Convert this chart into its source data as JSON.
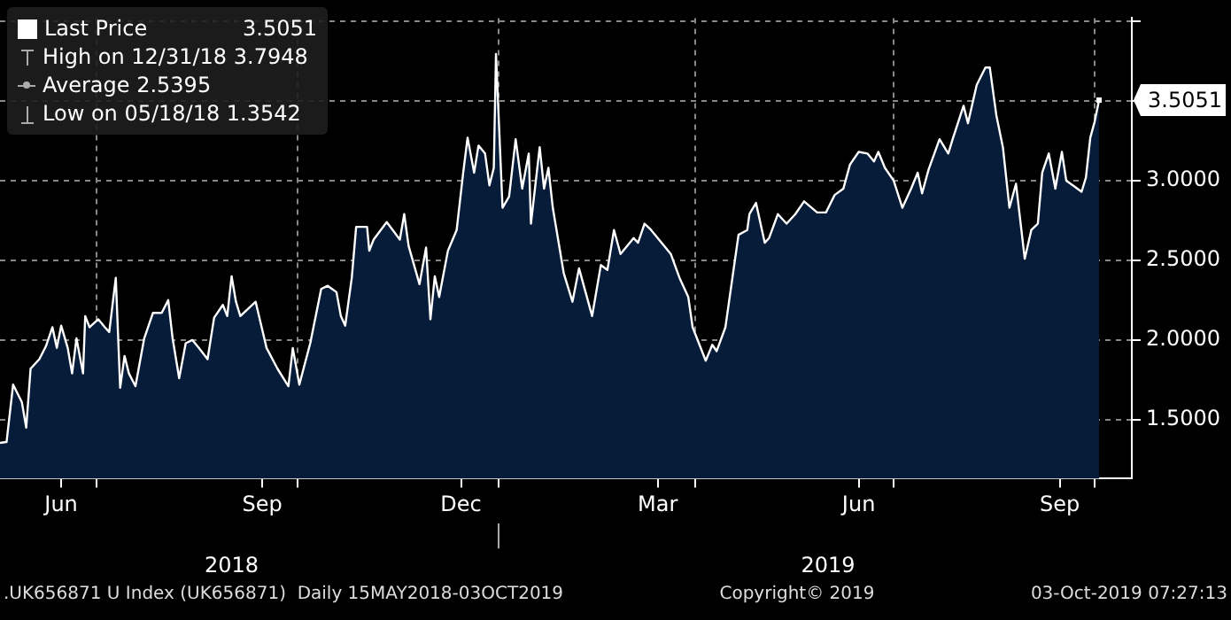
{
  "chart_data": {
    "type": "area",
    "x": [
      "2018-05-18",
      "2018-05-21",
      "2018-05-24",
      "2018-05-28",
      "2018-05-30",
      "2018-06-01",
      "2018-06-05",
      "2018-06-08",
      "2018-06-11",
      "2018-06-13",
      "2018-06-15",
      "2018-06-18",
      "2018-06-20",
      "2018-06-22",
      "2018-06-25",
      "2018-06-26",
      "2018-06-28",
      "2018-07-02",
      "2018-07-05",
      "2018-07-07",
      "2018-07-10",
      "2018-07-12",
      "2018-07-14",
      "2018-07-16",
      "2018-07-19",
      "2018-07-23",
      "2018-07-27",
      "2018-07-31",
      "2018-08-03",
      "2018-08-05",
      "2018-08-08",
      "2018-08-11",
      "2018-08-14",
      "2018-08-17",
      "2018-08-21",
      "2018-08-24",
      "2018-08-28",
      "2018-08-30",
      "2018-09-01",
      "2018-09-03",
      "2018-09-05",
      "2018-09-12",
      "2018-09-17",
      "2018-09-22",
      "2018-09-27",
      "2018-09-29",
      "2018-10-02",
      "2018-10-07",
      "2018-10-12",
      "2018-10-15",
      "2018-10-19",
      "2018-10-21",
      "2018-10-23",
      "2018-10-26",
      "2018-10-28",
      "2018-11-02",
      "2018-11-03",
      "2018-11-05",
      "2018-11-11",
      "2018-11-17",
      "2018-11-19",
      "2018-11-21",
      "2018-11-26",
      "2018-11-29",
      "2018-12-01",
      "2018-12-03",
      "2018-12-05",
      "2018-12-09",
      "2018-12-13",
      "2018-12-16",
      "2018-12-18",
      "2018-12-21",
      "2018-12-23",
      "2018-12-26",
      "2018-12-28",
      "2018-12-30",
      "2018-12-31",
      "2019-01-03",
      "2019-01-06",
      "2019-01-09",
      "2019-01-12",
      "2019-01-15",
      "2019-01-16",
      "2019-01-20",
      "2019-01-22",
      "2019-01-24",
      "2019-01-26",
      "2019-01-31",
      "2019-02-04",
      "2019-02-07",
      "2019-02-10",
      "2019-02-13",
      "2019-02-17",
      "2019-02-20",
      "2019-02-23",
      "2019-02-26",
      "2019-03-04",
      "2019-03-06",
      "2019-03-09",
      "2019-03-12",
      "2019-03-21",
      "2019-03-25",
      "2019-03-29",
      "2019-03-31",
      "2019-04-06",
      "2019-04-09",
      "2019-04-11",
      "2019-04-15",
      "2019-04-18",
      "2019-04-21",
      "2019-04-25",
      "2019-04-26",
      "2019-04-29",
      "2019-05-03",
      "2019-05-05",
      "2019-05-09",
      "2019-05-13",
      "2019-05-17",
      "2019-05-21",
      "2019-05-27",
      "2019-05-31",
      "2019-06-04",
      "2019-06-08",
      "2019-06-11",
      "2019-06-15",
      "2019-06-19",
      "2019-06-22",
      "2019-06-24",
      "2019-06-27",
      "2019-07-01",
      "2019-07-05",
      "2019-07-09",
      "2019-07-12",
      "2019-07-14",
      "2019-07-17",
      "2019-07-22",
      "2019-07-26",
      "2019-07-28",
      "2019-08-02",
      "2019-08-04",
      "2019-08-08",
      "2019-08-12",
      "2019-08-14",
      "2019-08-17",
      "2019-08-20",
      "2019-08-23",
      "2019-08-26",
      "2019-08-30",
      "2019-09-02",
      "2019-09-05",
      "2019-09-07",
      "2019-09-10",
      "2019-09-13",
      "2019-09-16",
      "2019-09-18",
      "2019-09-21",
      "2019-09-25",
      "2019-09-27",
      "2019-09-29",
      "2019-10-01",
      "2019-10-03"
    ],
    "series": [
      {
        "name": "Last Price",
        "color": "#ffffff",
        "values": [
          1.3542,
          1.36,
          1.72,
          1.61,
          1.45,
          1.82,
          1.88,
          1.96,
          2.08,
          1.95,
          2.09,
          1.95,
          1.79,
          2.01,
          1.79,
          2.15,
          2.08,
          2.13,
          2.08,
          2.05,
          2.39,
          1.7,
          1.9,
          1.79,
          1.71,
          2.01,
          2.17,
          2.17,
          2.25,
          2.01,
          1.76,
          1.98,
          2.0,
          1.95,
          1.88,
          2.14,
          2.22,
          2.15,
          2.4,
          2.24,
          2.15,
          2.24,
          1.95,
          1.82,
          1.71,
          1.95,
          1.72,
          1.98,
          2.32,
          2.34,
          2.3,
          2.15,
          2.09,
          2.39,
          2.71,
          2.71,
          2.56,
          2.63,
          2.74,
          2.63,
          2.79,
          2.59,
          2.35,
          2.58,
          2.13,
          2.4,
          2.27,
          2.56,
          2.69,
          3.05,
          3.27,
          3.05,
          3.22,
          3.17,
          2.97,
          3.08,
          3.7948,
          2.83,
          2.9,
          3.26,
          2.95,
          3.17,
          2.73,
          3.21,
          2.95,
          3.08,
          2.83,
          2.42,
          2.24,
          2.45,
          2.3,
          2.15,
          2.47,
          2.44,
          2.69,
          2.54,
          2.64,
          2.61,
          2.73,
          2.69,
          2.54,
          2.39,
          2.27,
          2.08,
          1.87,
          1.97,
          1.93,
          2.08,
          2.37,
          2.66,
          2.69,
          2.79,
          2.86,
          2.61,
          2.64,
          2.79,
          2.73,
          2.79,
          2.87,
          2.8,
          2.8,
          2.91,
          2.95,
          3.1,
          3.18,
          3.17,
          3.12,
          3.18,
          3.08,
          3.0,
          2.83,
          2.95,
          3.05,
          2.92,
          3.07,
          3.26,
          3.17,
          3.26,
          3.47,
          3.36,
          3.6,
          3.71,
          3.71,
          3.41,
          3.21,
          2.83,
          2.98,
          2.51,
          2.69,
          2.73,
          3.05,
          3.17,
          2.95,
          3.18,
          3.0,
          2.97,
          2.93,
          3.02,
          3.27,
          3.37,
          3.5051
        ]
      }
    ],
    "xlim": [
      "2018-05-18",
      "2019-10-18"
    ],
    "xticks": [
      {
        "value": "2018-06-15",
        "label": "Jun"
      },
      {
        "value": "2018-07-01",
        "label": null
      },
      {
        "value": "2018-09-15",
        "label": "Sep"
      },
      {
        "value": "2018-10-01",
        "label": null
      },
      {
        "value": "2018-12-15",
        "label": "Dec"
      },
      {
        "value": "2019-01-01",
        "label": null
      },
      {
        "value": "2019-03-15",
        "label": "Mar"
      },
      {
        "value": "2019-04-01",
        "label": null
      },
      {
        "value": "2019-06-15",
        "label": "Jun"
      },
      {
        "value": "2019-07-01",
        "label": null
      },
      {
        "value": "2019-09-15",
        "label": "Sep"
      },
      {
        "value": "2019-10-01",
        "label": null
      }
    ],
    "x2lim": [
      "2018-05-18",
      "2019-10-18"
    ],
    "x2ticks": [
      {
        "value": "2018-09-01",
        "label": "2018"
      },
      {
        "value": "2019-01-01",
        "label": null
      },
      {
        "value": "2019-06-01",
        "label": "2019"
      }
    ],
    "ylim": [
      1.13,
      4.02
    ],
    "yticks": [
      {
        "value": 1.5,
        "label": "1.5000"
      },
      {
        "value": 2,
        "label": "2.0000"
      },
      {
        "value": 2.5,
        "label": "2.5000"
      },
      {
        "value": 3,
        "label": "3.0000"
      },
      {
        "value": 3.5,
        "label": null
      },
      {
        "value": 4,
        "label": null
      }
    ],
    "grid": true,
    "legend": "top left",
    "annotations": [
      {
        "text": "3.5051",
        "x": "2019-10-03",
        "y": 3.5051
      },
      "High on 12/31/18 3.7948",
      "Average 2.5395",
      "Low on 05/18/18 1.3542",
      ".UK656871 U Index (UK656871)  Daily 15MAY2018-03OCT2019",
      "Copyright© 2019",
      "03-Oct-2019 07:27:13"
    ]
  }
}
